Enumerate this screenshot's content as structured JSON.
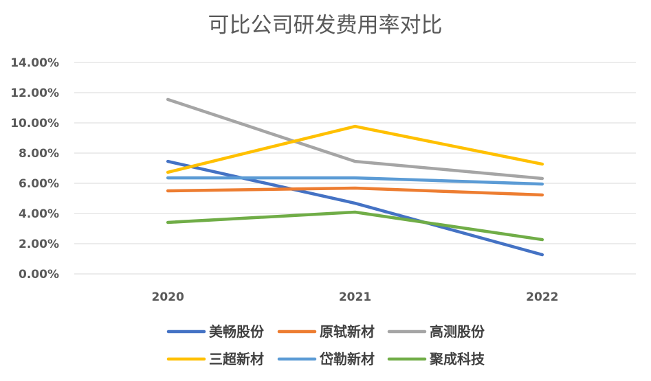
{
  "chart_data": {
    "type": "line",
    "title": "可比公司研发费用率对比",
    "categories": [
      "2020",
      "2021",
      "2022"
    ],
    "ylim": [
      0,
      14
    ],
    "yticks": [
      "0.00%",
      "2.00%",
      "4.00%",
      "6.00%",
      "8.00%",
      "10.00%",
      "12.00%",
      "14.00%"
    ],
    "grid": true,
    "legend_position": "bottom",
    "series": [
      {
        "name": "美畅股份",
        "color": "#4472C4",
        "values": [
          7.45,
          4.68,
          1.27
        ]
      },
      {
        "name": "原轼新材",
        "color": "#ED7D31",
        "values": [
          5.5,
          5.68,
          5.23
        ]
      },
      {
        "name": "高测股份",
        "color": "#A5A5A5",
        "values": [
          11.55,
          7.45,
          6.32
        ]
      },
      {
        "name": "三超新材",
        "color": "#FFC000",
        "values": [
          6.73,
          9.77,
          7.27
        ]
      },
      {
        "name": "岱勒新材",
        "color": "#5B9BD5",
        "values": [
          6.36,
          6.36,
          5.95
        ]
      },
      {
        "name": "聚成科技",
        "color": "#70AD47",
        "values": [
          3.41,
          4.09,
          2.27
        ]
      }
    ]
  }
}
